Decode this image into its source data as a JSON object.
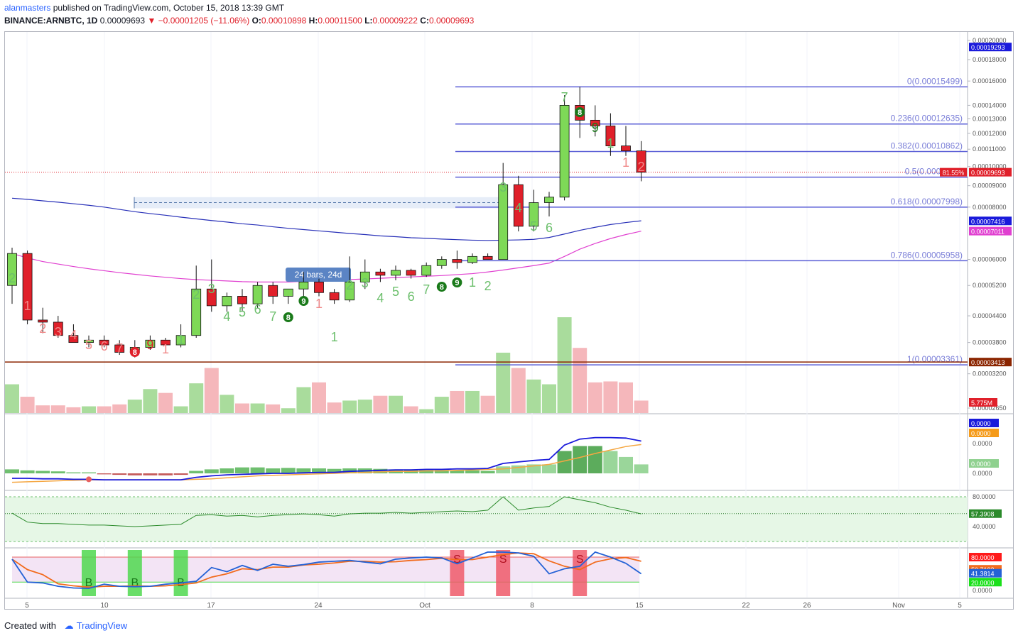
{
  "header": {
    "user": "alanmasters",
    "published": "published on TradingView.com, October 15, 2018 13:39 GMT",
    "symbol": "BINANCE:ARNBTC, 1D",
    "last": "0.00009693",
    "change": "−0.00001205 (−11.06%)",
    "o_label": "O:",
    "o": "0.00010898",
    "h_label": "H:",
    "h": "0.00011500",
    "l_label": "L:",
    "l": "0.00009222",
    "c_label": "C:",
    "c": "0.00009693"
  },
  "footer": {
    "created": "Created with",
    "brand": "TradingView"
  },
  "colors": {
    "up": "#7ed957",
    "down": "#e0202a",
    "fib": "#5b5fd6",
    "ma_blue": "#2830b8",
    "ma_pink": "#e040d0"
  },
  "chart_data": [
    {
      "type": "candlestick",
      "title": "BINANCE:ARNBTC, 1D",
      "x_ticks": [
        "5",
        "10",
        "17",
        "24",
        "Oct",
        "8",
        "15",
        "22",
        "26",
        "Nov",
        "5"
      ],
      "y_ticks": [
        "0.00020000",
        "0.00018000",
        "0.00016000",
        "0.00014000",
        "0.00013000",
        "0.00012000",
        "0.00011000",
        "0.00010000",
        "0.00009000",
        "0.00008000",
        "0.00006000",
        "0.00005200",
        "0.00004400",
        "0.00003800",
        "0.00003200",
        "0.00002650"
      ],
      "y_scale": "log",
      "ohlc": [
        [
          5.2e-05,
          6.4e-05,
          4.7e-05,
          6.2e-05
        ],
        [
          6.2e-05,
          6.3e-05,
          4.2e-05,
          4.3e-05
        ],
        [
          4.3e-05,
          4.6e-05,
          4e-05,
          4.25e-05
        ],
        [
          4.25e-05,
          4.4e-05,
          3.9e-05,
          3.95e-05
        ],
        [
          3.95e-05,
          4.2e-05,
          3.8e-05,
          3.8e-05
        ],
        [
          3.8e-05,
          3.95e-05,
          3.7e-05,
          3.85e-05
        ],
        [
          3.85e-05,
          3.95e-05,
          3.7e-05,
          3.75e-05
        ],
        [
          3.75e-05,
          3.85e-05,
          3.55e-05,
          3.6e-05
        ],
        [
          3.6e-05,
          3.85e-05,
          3.5e-05,
          3.7e-05
        ],
        [
          3.7e-05,
          3.95e-05,
          3.65e-05,
          3.85e-05
        ],
        [
          3.85e-05,
          3.9e-05,
          3.7e-05,
          3.75e-05
        ],
        [
          3.75e-05,
          4.2e-05,
          3.7e-05,
          3.95e-05
        ],
        [
          3.95e-05,
          5.8e-05,
          3.9e-05,
          5.1e-05
        ],
        [
          5.1e-05,
          6e-05,
          4.5e-05,
          4.65e-05
        ],
        [
          4.65e-05,
          5e-05,
          4.5e-05,
          4.9e-05
        ],
        [
          4.9e-05,
          5.1e-05,
          4.5e-05,
          4.7e-05
        ],
        [
          4.7e-05,
          5.3e-05,
          4.6e-05,
          5.2e-05
        ],
        [
          5.2e-05,
          5.3e-05,
          4.7e-05,
          4.9e-05
        ],
        [
          4.9e-05,
          5.1e-05,
          4.7e-05,
          5.1e-05
        ],
        [
          5.1e-05,
          5.6e-05,
          4.9e-05,
          5.3e-05
        ],
        [
          5.3e-05,
          5.4e-05,
          4.9e-05,
          5e-05
        ],
        [
          5e-05,
          5.1e-05,
          4.7e-05,
          4.8e-05
        ],
        [
          4.8e-05,
          6.1e-05,
          4.75e-05,
          5.3e-05
        ],
        [
          5.3e-05,
          6e-05,
          5.1e-05,
          5.6e-05
        ],
        [
          5.6e-05,
          5.7e-05,
          5.3e-05,
          5.5e-05
        ],
        [
          5.5e-05,
          5.8e-05,
          5.35e-05,
          5.65e-05
        ],
        [
          5.65e-05,
          5.7e-05,
          5.4e-05,
          5.5e-05
        ],
        [
          5.5e-05,
          5.9e-05,
          5.45e-05,
          5.8e-05
        ],
        [
          5.8e-05,
          6.1e-05,
          5.7e-05,
          6e-05
        ],
        [
          6e-05,
          6.3e-05,
          5.7e-05,
          5.9e-05
        ],
        [
          5.9e-05,
          6.2e-05,
          5.85e-05,
          6.1e-05
        ],
        [
          6.1e-05,
          6.2e-05,
          6e-05,
          6e-05
        ],
        [
          6e-05,
          0.000102,
          6e-05,
          9.05e-05
        ],
        [
          9.05e-05,
          9.5e-05,
          7e-05,
          7.2e-05
        ],
        [
          7.2e-05,
          8.8e-05,
          7e-05,
          8.2e-05
        ],
        [
          8.2e-05,
          8.7e-05,
          7.6e-05,
          8.45e-05
        ],
        [
          8.45e-05,
          0.000148,
          8.3e-05,
          0.00014
        ],
        [
          0.00014,
          0.000155,
          0.000117,
          0.000129
        ],
        [
          0.000129,
          0.00014,
          0.000118,
          0.000125
        ],
        [
          0.000125,
          0.000134,
          0.000106,
          0.000112
        ],
        [
          0.000112,
          0.000125,
          0.000106,
          0.000109
        ],
        [
          0.000109,
          0.000115,
          9.22e-05,
          9.69e-05
        ]
      ],
      "td_counts": [
        "2",
        "1",
        "2",
        "3",
        "4",
        "5",
        "6",
        "7",
        "8",
        "9",
        "1",
        "1",
        "2",
        "3",
        "4",
        "5",
        "6",
        "7",
        "8",
        "9",
        "1",
        "1",
        "2",
        "3",
        "4",
        "5",
        "6",
        "7",
        "8",
        "9",
        "1",
        "2",
        "3",
        "4",
        "5",
        "6",
        "7",
        "8",
        "9",
        "1",
        "1",
        "2"
      ],
      "fib_levels": [
        {
          "label": "0(0.00015499)",
          "value": 0.00015499
        },
        {
          "label": "0.236(0.00012635)",
          "value": 0.00012635
        },
        {
          "label": "0.382(0.00010862)",
          "value": 0.00010862
        },
        {
          "label": "0.5(0.0000943)",
          "value": 9.43e-05
        },
        {
          "label": "0.618(0.00007998)",
          "value": 7.998e-05
        },
        {
          "label": "0.786(0.00005958)",
          "value": 5.958e-05
        },
        {
          "label": "1(0.00003361)",
          "value": 3.361e-05
        }
      ],
      "price_labels": [
        {
          "text": "0.00019293",
          "value": 0.00019293,
          "color": "#1a1adb"
        },
        {
          "text": "0.00009693",
          "value": 9.693e-05,
          "color": "#e0202a"
        },
        {
          "text": "0.00007416",
          "value": 7.416e-05,
          "color": "#1a1adb"
        },
        {
          "text": "0.00007011",
          "value": 7.011e-05,
          "color": "#e040d0"
        },
        {
          "text": "0.00003413",
          "value": 3.413e-05,
          "color": "#8b2500"
        }
      ],
      "pct_label": "81.55%",
      "volume_label": "5.775M",
      "range_tool": "24 bars, 24d"
    },
    {
      "type": "line",
      "name": "MACD",
      "y_ticks": [
        "0.0000",
        "0.0000"
      ],
      "value_labels": [
        "0.0000",
        "0.0000",
        "0.0000"
      ]
    },
    {
      "type": "line",
      "name": "RSI",
      "y_ticks": [
        "80.0000",
        "40.0000"
      ],
      "value_label": "57.3908"
    },
    {
      "type": "line",
      "name": "Stochastic",
      "y_ticks": [
        "80.0000",
        "20.0000",
        "0.0000"
      ],
      "value_labels": [
        "50.7193",
        "41.3814"
      ],
      "signals": [
        "B",
        "B",
        "B",
        "S",
        "S",
        "S"
      ]
    }
  ]
}
